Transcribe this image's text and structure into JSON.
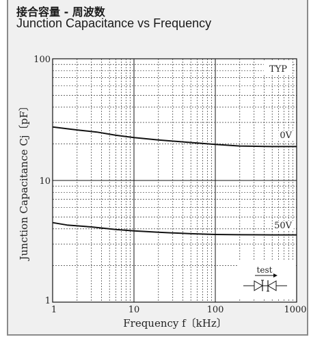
{
  "title_cn": "接合容量 - 周波数",
  "title_en": "Junction Capacitance vs Frequency",
  "chart_data": {
    "type": "line",
    "xlabel": "Frequency f〔kHz〕",
    "ylabel": "Junction Capacitance Cj〔pF〕",
    "xscale": "log",
    "yscale": "log",
    "xlim": [
      1,
      1000
    ],
    "ylim": [
      1,
      100
    ],
    "xticks": [
      "1",
      "10",
      "100",
      "1000"
    ],
    "yticks": [
      "1",
      "10",
      "100"
    ],
    "grid": true,
    "annotation": "TYP",
    "inset_label": "test",
    "series": [
      {
        "name": "0V",
        "x": [
          1,
          2,
          3.5,
          6,
          10,
          20,
          50,
          100,
          200,
          500,
          1000
        ],
        "y": [
          27.5,
          26,
          25,
          23.5,
          22.5,
          21.5,
          20.5,
          19.8,
          19.2,
          19.0,
          19.0
        ]
      },
      {
        "name": "50V",
        "x": [
          1,
          1.5,
          3,
          6,
          10,
          20,
          50,
          100,
          200,
          500,
          1000
        ],
        "y": [
          4.5,
          4.3,
          4.15,
          3.95,
          3.85,
          3.75,
          3.65,
          3.6,
          3.58,
          3.57,
          3.57
        ]
      }
    ]
  }
}
